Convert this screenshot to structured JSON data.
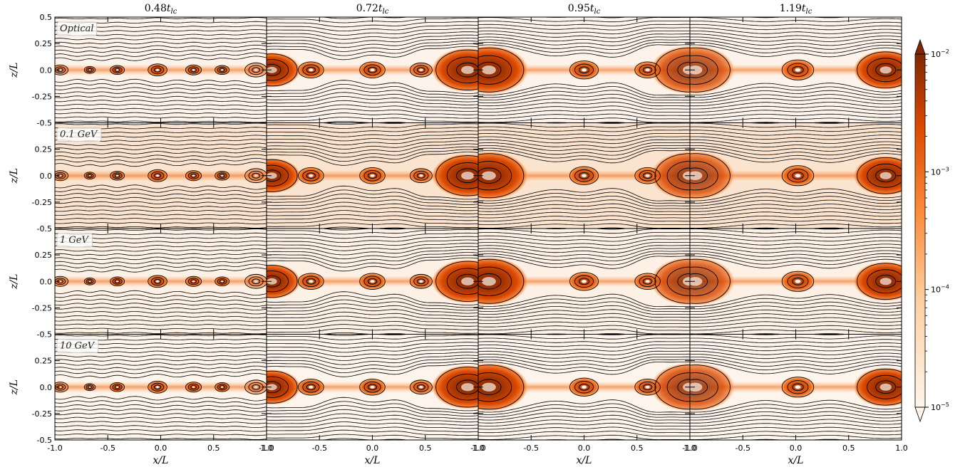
{
  "chart_data": {
    "type": "heatmap",
    "columns": [
      {
        "title": "0.48",
        "sub": "lc"
      },
      {
        "title": "0.72",
        "sub": "lc"
      },
      {
        "title": "0.95",
        "sub": "lc"
      },
      {
        "title": "1.19",
        "sub": "lc"
      }
    ],
    "rows": [
      {
        "label": "Optical",
        "background": "#fdf3ea"
      },
      {
        "label": "0.1 GeV",
        "background": "#fbe4cf"
      },
      {
        "label": "1 GeV",
        "background": "#fdf1e6"
      },
      {
        "label": "10 GeV",
        "background": "#fdf4ec"
      }
    ],
    "xlabel": "x/L",
    "ylabel": "z/L",
    "xlim": [
      -1.0,
      1.0
    ],
    "ylim": [
      -0.5,
      0.5
    ],
    "x_ticks": [
      "-1.0",
      "-0.5",
      "0.0",
      "0.5",
      "1.0"
    ],
    "y_ticks": [
      "0.5",
      "0.25",
      "0.0",
      "-0.25",
      "-0.5"
    ],
    "colorbar": {
      "scale": "log",
      "range": [
        1e-05,
        0.01
      ],
      "ticks": [
        {
          "base": "10",
          "exp": "−2",
          "value": 0.01
        },
        {
          "base": "10",
          "exp": "−3",
          "value": 0.001
        },
        {
          "base": "10",
          "exp": "−4",
          "value": 0.0001
        },
        {
          "base": "10",
          "exp": "−5",
          "value": 1e-05
        }
      ],
      "colors": [
        "#fff5eb",
        "#fdd0a2",
        "#fd8d3c",
        "#d94801",
        "#7f2704"
      ]
    },
    "plasmoids": [
      [
        {
          "x": -0.95,
          "r": 0.05,
          "i": 0.6
        },
        {
          "x": -0.67,
          "r": 0.035,
          "i": 0.8
        },
        {
          "x": -0.41,
          "r": 0.045,
          "i": 0.9
        },
        {
          "x": -0.03,
          "r": 0.06,
          "i": 0.9
        },
        {
          "x": 0.31,
          "r": 0.05,
          "i": 0.9
        },
        {
          "x": 0.58,
          "r": 0.045,
          "i": 0.9
        },
        {
          "x": 0.9,
          "r": 0.07,
          "i": 0.5
        }
      ],
      [
        {
          "x": -0.95,
          "r": 0.16,
          "i": 1.0
        },
        {
          "x": -0.58,
          "r": 0.08,
          "i": 0.9
        },
        {
          "x": 0.0,
          "r": 0.08,
          "i": 0.9
        },
        {
          "x": 0.46,
          "r": 0.07,
          "i": 0.8
        },
        {
          "x": 0.9,
          "r": 0.2,
          "i": 1.0
        }
      ],
      [
        {
          "x": -0.9,
          "r": 0.22,
          "i": 1.0
        },
        {
          "x": 0.0,
          "r": 0.09,
          "i": 0.9
        },
        {
          "x": 0.6,
          "r": 0.08,
          "i": 0.85
        },
        {
          "x": 1.0,
          "r": 0.22,
          "i": 0.85
        }
      ],
      [
        {
          "x": -0.95,
          "r": 0.22,
          "i": 0.8
        },
        {
          "x": 0.02,
          "r": 0.1,
          "i": 0.9
        },
        {
          "x": 0.85,
          "r": 0.18,
          "i": 1.0
        }
      ]
    ]
  }
}
